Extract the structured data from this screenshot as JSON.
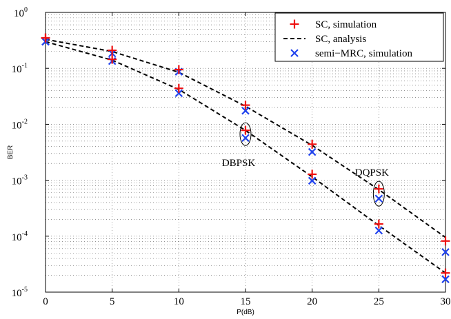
{
  "chart_data": {
    "type": "line",
    "yscale": "log",
    "xlabel": "P(dB)",
    "ylabel": "BER",
    "xlim": [
      0,
      30
    ],
    "ylim": [
      1e-05,
      1
    ],
    "x_ticks": [
      0,
      5,
      10,
      15,
      20,
      25,
      30
    ],
    "y_tick_exponents": [
      0,
      -1,
      -2,
      -3,
      -4,
      -5
    ],
    "y_tick_base": "10",
    "grid": true,
    "legend_position": "top-right",
    "colors": {
      "sc_simulation": "#ee1111",
      "sc_analysis": "#000000",
      "semi_mrc_simulation": "#2244ee"
    },
    "series": [
      {
        "name": "SC, simulation",
        "key": "sc_simulation",
        "marker": "+",
        "groups": [
          {
            "label": "DBPSK",
            "x": [
              0,
              5,
              10,
              15,
              20,
              25,
              30
            ],
            "y": [
              0.35,
              0.145,
              0.044,
              0.0078,
              0.00128,
              0.000165,
              2.2e-05
            ]
          },
          {
            "label": "DQPSK",
            "x": [
              0,
              5,
              10,
              15,
              20,
              25,
              30
            ],
            "y": [
              0.35,
              0.21,
              0.095,
              0.022,
              0.0044,
              0.0007,
              8.2e-05
            ]
          }
        ]
      },
      {
        "name": "SC, analysis",
        "key": "sc_analysis",
        "line": "dashed",
        "groups": [
          {
            "label": "DBPSK",
            "x": [
              0,
              5,
              10,
              15,
              20,
              25,
              30
            ],
            "y": [
              0.3,
              0.14,
              0.042,
              0.0078,
              0.00115,
              0.000155,
              2.2e-05
            ]
          },
          {
            "label": "DQPSK",
            "x": [
              0,
              5,
              10,
              15,
              20,
              25,
              30
            ],
            "y": [
              0.33,
              0.2,
              0.085,
              0.021,
              0.0042,
              0.00068,
              9.5e-05
            ]
          }
        ]
      },
      {
        "name": "semi−MRC, simulation",
        "key": "semi_mrc_simulation",
        "marker": "x",
        "groups": [
          {
            "label": "DBPSK",
            "x": [
              0,
              5,
              10,
              15,
              20,
              25,
              30
            ],
            "y": [
              0.3,
              0.135,
              0.036,
              0.0057,
              0.00098,
              0.000126,
              1.7e-05
            ]
          },
          {
            "label": "DQPSK",
            "x": [
              0,
              5,
              10,
              15,
              20,
              25,
              30
            ],
            "y": [
              0.3,
              0.185,
              0.087,
              0.0175,
              0.0032,
              0.00047,
              5.2e-05
            ]
          }
        ]
      }
    ],
    "annotations": [
      {
        "text": "DBPSK",
        "x": 15,
        "y_points": [
          0.0078,
          0.0057
        ],
        "label_y": 0.0018
      },
      {
        "text": "DQPSK",
        "x": 25,
        "y_points": [
          0.0007,
          0.00047
        ],
        "label_y": 0.0012
      }
    ]
  }
}
